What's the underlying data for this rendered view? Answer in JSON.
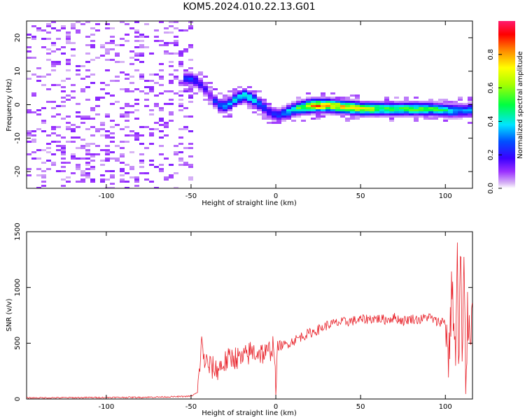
{
  "title": "KOM5.2024.010.22.13.G01",
  "chart_data": [
    {
      "type": "heatmap",
      "xlabel": "Height of straight line (km)",
      "ylabel": "Frequency (Hz)",
      "xlim": [
        -147,
        116
      ],
      "ylim": [
        -25,
        25
      ],
      "xticks": [
        -100,
        -50,
        0,
        50,
        100
      ],
      "yticks": [
        -20,
        -10,
        0,
        10,
        20
      ],
      "ridge_x": [
        -50,
        -45,
        -40,
        -35,
        -30,
        -25,
        -20,
        -15,
        -10,
        -5,
        0,
        10,
        20,
        30,
        40,
        50,
        60,
        70,
        80,
        90,
        100,
        110,
        116
      ],
      "ridge_freq": [
        8,
        6,
        3,
        0,
        0,
        2,
        3,
        2,
        0,
        -2,
        -3,
        -1,
        0,
        0,
        -0.5,
        -1,
        -1,
        -1,
        -1,
        -1,
        -1.5,
        -1.5,
        -1
      ],
      "ridge_amp": [
        0.25,
        0.2,
        0.15,
        0.3,
        0.35,
        0.4,
        0.45,
        0.4,
        0.3,
        0.2,
        0.25,
        0.45,
        0.8,
        0.8,
        0.75,
        0.7,
        0.55,
        0.5,
        0.55,
        0.5,
        0.45,
        0.3,
        0.35
      ],
      "colorbar": {
        "label": "Normalized spectral amplitude",
        "range": [
          0,
          1
        ],
        "ticks": [
          0.0,
          0.2,
          0.4,
          0.6,
          0.8
        ],
        "tick_labels": [
          "0.0",
          "0.2",
          "0.4",
          "0.6",
          "0.8"
        ]
      },
      "grid": false
    },
    {
      "type": "line",
      "xlabel": "Height of straight line (km)",
      "ylabel": "SNR (v/v)",
      "xlim": [
        -147,
        116
      ],
      "ylim": [
        0,
        1500
      ],
      "xticks": [
        -100,
        -50,
        0,
        50,
        100
      ],
      "yticks": [
        0,
        500,
        1000,
        1500
      ],
      "x": [
        -147,
        -120,
        -100,
        -80,
        -60,
        -50,
        -46,
        -44,
        -42,
        -40,
        -35,
        -30,
        -25,
        -20,
        -15,
        -10,
        -5,
        -1,
        0,
        1,
        5,
        10,
        15,
        20,
        25,
        30,
        35,
        40,
        45,
        50,
        55,
        60,
        65,
        70,
        75,
        80,
        85,
        90,
        95,
        100,
        102,
        104,
        106,
        107,
        108,
        109,
        110,
        111,
        112,
        113,
        116
      ],
      "values": [
        10,
        12,
        14,
        15,
        20,
        25,
        60,
        500,
        350,
        300,
        260,
        330,
        380,
        350,
        420,
        420,
        400,
        500,
        20,
        480,
        480,
        520,
        560,
        590,
        620,
        660,
        680,
        690,
        700,
        710,
        720,
        720,
        710,
        730,
        700,
        720,
        710,
        740,
        690,
        700,
        350,
        1050,
        300,
        1300,
        200,
        1500,
        150,
        1200,
        100,
        700,
        700
      ],
      "color": "#e8222a",
      "grid": false
    }
  ]
}
